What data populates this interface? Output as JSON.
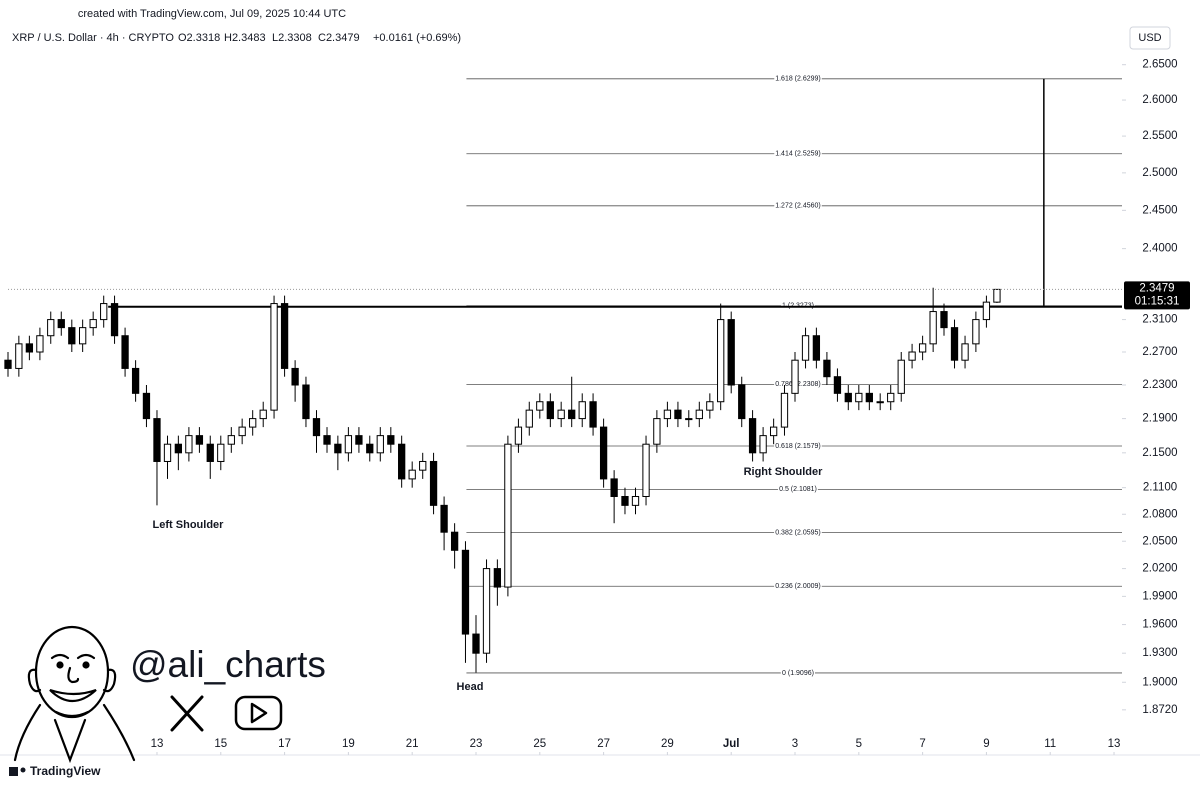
{
  "header": "created with TradingView.com, Jul 09, 2025 10:44 UTC",
  "legend": {
    "symbol": "XRP / U.S. Dollar · 4h · CRYPTO",
    "open": "O2.3318",
    "high": "H2.3483",
    "low": "L2.3308",
    "close": "C2.3479",
    "change": "+0.0161 (+0.69%)"
  },
  "watermark": "@ali_charts",
  "footer": "TradingView",
  "chart_data": {
    "type": "candlestick",
    "currency": "USD",
    "countdown": "01:15:31",
    "log_scale": true,
    "up_color": "#ffffff",
    "down_color": "#000000",
    "xlim": [
      8.33,
      43.25
    ],
    "ylim": [
      1.827,
      2.7
    ],
    "xticks": [
      13,
      15,
      17,
      19,
      21,
      23,
      25,
      27,
      29,
      {
        "value": 31,
        "label": "Jul"
      },
      {
        "value": 33,
        "label": "3"
      },
      {
        "value": 35,
        "label": "5"
      },
      {
        "value": 37,
        "label": "7"
      },
      {
        "value": 39,
        "label": "9"
      },
      {
        "value": 41,
        "label": "11"
      },
      {
        "value": 43,
        "label": "13"
      }
    ],
    "yticks": [
      {
        "value": 2.65,
        "label": "2.6500"
      },
      {
        "value": 2.6,
        "label": "2.6000"
      },
      {
        "value": 2.55,
        "label": "2.5500"
      },
      {
        "value": 2.5,
        "label": "2.5000"
      },
      {
        "value": 2.45,
        "label": "2.4500"
      },
      {
        "value": 2.4,
        "label": "2.4000"
      },
      {
        "value": 2.31,
        "label": "2.3100"
      },
      {
        "value": 2.27,
        "label": "2.2700"
      },
      {
        "value": 2.23,
        "label": "2.2300"
      },
      {
        "value": 2.19,
        "label": "2.1900"
      },
      {
        "value": 2.15,
        "label": "2.1500"
      },
      {
        "value": 2.11,
        "label": "2.1100"
      },
      {
        "value": 2.08,
        "label": "2.0800"
      },
      {
        "value": 2.05,
        "label": "2.0500"
      },
      {
        "value": 2.02,
        "label": "2.0200"
      },
      {
        "value": 1.99,
        "label": "1.9900"
      },
      {
        "value": 1.96,
        "label": "1.9600"
      },
      {
        "value": 1.93,
        "label": "1.9300"
      },
      {
        "value": 1.9,
        "label": "1.9000"
      },
      {
        "value": 1.872,
        "label": "1.8720"
      }
    ],
    "x": [
      8.33,
      8.67,
      9,
      9.33,
      9.67,
      10,
      10.33,
      10.67,
      11,
      11.33,
      11.67,
      12,
      12.33,
      12.67,
      13,
      13.33,
      13.67,
      14,
      14.33,
      14.67,
      15,
      15.33,
      15.67,
      16,
      16.33,
      16.67,
      17,
      17.33,
      17.67,
      18,
      18.33,
      18.67,
      19,
      19.33,
      19.67,
      20,
      20.33,
      20.67,
      21,
      21.33,
      21.67,
      22,
      22.33,
      22.67,
      23,
      23.33,
      23.67,
      24,
      24.33,
      24.67,
      25,
      25.33,
      25.67,
      26,
      26.33,
      26.67,
      27,
      27.33,
      27.67,
      28,
      28.33,
      28.67,
      29,
      29.33,
      29.67,
      30,
      30.33,
      30.67,
      31,
      31.33,
      31.67,
      32,
      32.33,
      32.67,
      33,
      33.33,
      33.67,
      34,
      34.33,
      34.67,
      35,
      35.33,
      35.67,
      36,
      36.33,
      36.67,
      37,
      37.33,
      37.67,
      38,
      38.33,
      38.67,
      39,
      39.33
    ],
    "open": [
      2.26,
      2.25,
      2.28,
      2.27,
      2.29,
      2.31,
      2.3,
      2.28,
      2.3,
      2.31,
      2.33,
      2.29,
      2.25,
      2.22,
      2.19,
      2.14,
      2.16,
      2.15,
      2.17,
      2.16,
      2.14,
      2.16,
      2.17,
      2.18,
      2.19,
      2.2,
      2.33,
      2.25,
      2.23,
      2.19,
      2.17,
      2.16,
      2.15,
      2.17,
      2.16,
      2.15,
      2.17,
      2.16,
      2.12,
      2.13,
      2.14,
      2.09,
      2.06,
      2.04,
      1.95,
      1.93,
      2.02,
      2.0,
      2.16,
      2.18,
      2.2,
      2.21,
      2.19,
      2.2,
      2.19,
      2.21,
      2.18,
      2.12,
      2.1,
      2.09,
      2.1,
      2.16,
      2.19,
      2.2,
      2.19,
      2.19,
      2.2,
      2.21,
      2.31,
      2.23,
      2.19,
      2.15,
      2.17,
      2.18,
      2.22,
      2.26,
      2.29,
      2.26,
      2.24,
      2.22,
      2.21,
      2.22,
      2.21,
      2.21,
      2.22,
      2.26,
      2.27,
      2.28,
      2.32,
      2.3,
      2.26,
      2.28,
      2.31,
      2.3318
    ],
    "high": [
      2.27,
      2.29,
      2.29,
      2.3,
      2.32,
      2.32,
      2.31,
      2.31,
      2.32,
      2.34,
      2.34,
      2.3,
      2.26,
      2.23,
      2.2,
      2.17,
      2.17,
      2.18,
      2.18,
      2.17,
      2.17,
      2.18,
      2.19,
      2.2,
      2.21,
      2.34,
      2.34,
      2.26,
      2.24,
      2.2,
      2.18,
      2.17,
      2.18,
      2.18,
      2.17,
      2.18,
      2.18,
      2.17,
      2.14,
      2.15,
      2.15,
      2.1,
      2.07,
      2.05,
      1.97,
      2.03,
      2.03,
      2.17,
      2.19,
      2.21,
      2.22,
      2.22,
      2.21,
      2.24,
      2.22,
      2.22,
      2.19,
      2.13,
      2.11,
      2.11,
      2.17,
      2.2,
      2.21,
      2.21,
      2.2,
      2.21,
      2.22,
      2.33,
      2.32,
      2.24,
      2.2,
      2.18,
      2.19,
      2.23,
      2.27,
      2.3,
      2.3,
      2.27,
      2.25,
      2.23,
      2.23,
      2.23,
      2.22,
      2.23,
      2.27,
      2.28,
      2.29,
      2.35,
      2.33,
      2.31,
      2.29,
      2.32,
      2.34,
      2.3483
    ],
    "low": [
      2.24,
      2.24,
      2.26,
      2.26,
      2.28,
      2.29,
      2.27,
      2.27,
      2.29,
      2.3,
      2.28,
      2.24,
      2.21,
      2.18,
      2.09,
      2.12,
      2.13,
      2.14,
      2.15,
      2.12,
      2.13,
      2.15,
      2.16,
      2.17,
      2.18,
      2.19,
      2.24,
      2.21,
      2.18,
      2.15,
      2.15,
      2.13,
      2.14,
      2.15,
      2.14,
      2.14,
      2.15,
      2.11,
      2.11,
      2.12,
      2.08,
      2.04,
      2.02,
      1.92,
      1.91,
      1.92,
      1.98,
      1.99,
      2.15,
      2.17,
      2.19,
      2.18,
      2.18,
      2.18,
      2.18,
      2.17,
      2.11,
      2.07,
      2.08,
      2.08,
      2.09,
      2.15,
      2.18,
      2.18,
      2.18,
      2.18,
      2.19,
      2.2,
      2.22,
      2.18,
      2.14,
      2.14,
      2.16,
      2.17,
      2.21,
      2.25,
      2.25,
      2.23,
      2.21,
      2.2,
      2.2,
      2.2,
      2.2,
      2.2,
      2.21,
      2.25,
      2.26,
      2.27,
      2.29,
      2.25,
      2.25,
      2.27,
      2.3,
      2.3308
    ],
    "close": [
      2.25,
      2.28,
      2.27,
      2.29,
      2.31,
      2.3,
      2.28,
      2.3,
      2.31,
      2.33,
      2.29,
      2.25,
      2.22,
      2.19,
      2.14,
      2.16,
      2.15,
      2.17,
      2.16,
      2.14,
      2.16,
      2.17,
      2.18,
      2.19,
      2.2,
      2.33,
      2.25,
      2.23,
      2.19,
      2.17,
      2.16,
      2.15,
      2.17,
      2.16,
      2.15,
      2.17,
      2.16,
      2.12,
      2.13,
      2.14,
      2.09,
      2.06,
      2.04,
      1.95,
      1.93,
      2.02,
      2.0,
      2.16,
      2.18,
      2.2,
      2.21,
      2.19,
      2.2,
      2.19,
      2.21,
      2.18,
      2.12,
      2.1,
      2.09,
      2.1,
      2.16,
      2.19,
      2.2,
      2.19,
      2.19,
      2.2,
      2.21,
      2.31,
      2.23,
      2.19,
      2.15,
      2.17,
      2.18,
      2.22,
      2.26,
      2.29,
      2.26,
      2.24,
      2.22,
      2.21,
      2.22,
      2.21,
      2.21,
      2.22,
      2.26,
      2.27,
      2.28,
      2.32,
      2.3,
      2.26,
      2.28,
      2.31,
      2.3318,
      2.3479
    ],
    "neckline": {
      "x": 11.47,
      "value": 2.326
    },
    "fib_x": 22.7,
    "fib_levels": [
      {
        "label": "1.618 (2.6299)",
        "value": 2.6299
      },
      {
        "label": "1.414 (2.5259)",
        "value": 2.5259
      },
      {
        "label": "1.272 (2.4560)",
        "value": 2.456
      },
      {
        "label": "1 (2.3273)",
        "value": 2.3273
      },
      {
        "label": "0.786 (2.2308)",
        "value": 2.2308
      },
      {
        "label": "0.618 (2.1579)",
        "value": 2.1579
      },
      {
        "label": "0.5 (2.1081)",
        "value": 2.1081
      },
      {
        "label": "0.382 (2.0595)",
        "value": 2.0595
      },
      {
        "label": "0.236 (2.0009)",
        "value": 2.0009
      },
      {
        "label": "0 (1.9096)",
        "value": 1.9096
      }
    ],
    "target_x": 40.8,
    "annotations": [
      "Left Shoulder",
      "Head",
      "Right Shoulder"
    ]
  }
}
